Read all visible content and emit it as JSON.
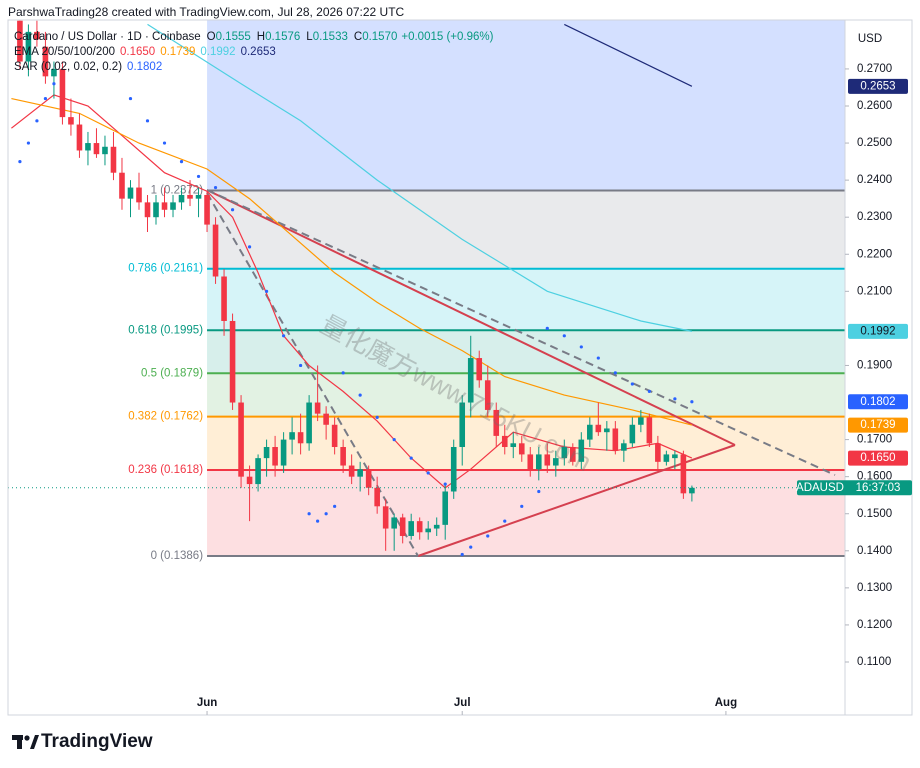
{
  "header": "ParshwaTrading28 created with TradingView.com, Jul 28, 2026 07:22 UTC",
  "logo": "TradingView",
  "chart_data": {
    "type": "candlestick",
    "currency": "USD",
    "symbol": "ADAUSD",
    "countdown": "16:37:03",
    "watermark": "量化魔方www.715KU.com",
    "up_color": "#089981",
    "down_color": "#f23645",
    "xlim": [
      -23.4,
      75
    ],
    "xticks": [
      {
        "value": 0,
        "label": "Jun"
      },
      {
        "value": 30,
        "label": "Jul"
      },
      {
        "value": 61,
        "label": "Aug"
      }
    ],
    "ylim": [
      0.0957,
      0.2832
    ],
    "yticks": [
      {
        "value": 0.11,
        "label": "0.1100"
      },
      {
        "value": 0.12,
        "label": "0.1200"
      },
      {
        "value": 0.13,
        "label": "0.1300"
      },
      {
        "value": 0.14,
        "label": "0.1400"
      },
      {
        "value": 0.15,
        "label": "0.1500"
      },
      {
        "value": 0.16,
        "label": "0.1600"
      },
      {
        "value": 0.17,
        "label": "0.1700"
      },
      {
        "value": 0.19,
        "label": "0.1900"
      },
      {
        "value": 0.21,
        "label": "0.2100"
      },
      {
        "value": 0.22,
        "label": "0.2200"
      },
      {
        "value": 0.23,
        "label": "0.2300"
      },
      {
        "value": 0.24,
        "label": "0.2400"
      },
      {
        "value": 0.25,
        "label": "0.2500"
      },
      {
        "value": 0.26,
        "label": "0.2600"
      },
      {
        "value": 0.27,
        "label": "0.2700"
      }
    ],
    "candles": {
      "x": [
        -22,
        -21,
        -20,
        -19,
        -18,
        -17,
        -16,
        -15,
        -14,
        -13,
        -12,
        -11,
        -10,
        -9,
        -8,
        -7,
        -6,
        -5,
        -4,
        -3,
        -2,
        -1,
        0,
        1,
        2,
        3,
        4,
        5,
        6,
        7,
        8,
        9,
        10,
        11,
        12,
        13,
        14,
        15,
        16,
        17,
        18,
        19,
        20,
        21,
        22,
        23,
        24,
        25,
        26,
        27,
        28,
        29,
        30,
        31,
        32,
        33,
        34,
        35,
        36,
        37,
        38,
        39,
        40,
        41,
        42,
        43,
        44,
        45,
        46,
        47,
        48,
        49,
        50,
        51,
        52,
        53,
        54,
        55,
        56,
        57
      ],
      "open": [
        0.283,
        0.272,
        0.28,
        0.276,
        0.268,
        0.27,
        0.257,
        0.255,
        0.248,
        0.25,
        0.247,
        0.249,
        0.242,
        0.235,
        0.238,
        0.234,
        0.23,
        0.234,
        0.232,
        0.234,
        0.236,
        0.235,
        0.236,
        0.228,
        0.214,
        0.202,
        0.18,
        0.16,
        0.158,
        0.165,
        0.168,
        0.163,
        0.17,
        0.172,
        0.169,
        0.18,
        0.177,
        0.174,
        0.168,
        0.163,
        0.16,
        0.162,
        0.157,
        0.152,
        0.146,
        0.149,
        0.144,
        0.148,
        0.145,
        0.146,
        0.147,
        0.156,
        0.168,
        0.18,
        0.192,
        0.186,
        0.178,
        0.171,
        0.168,
        0.169,
        0.166,
        0.162,
        0.166,
        0.163,
        0.165,
        0.168,
        0.164,
        0.17,
        0.174,
        0.172,
        0.173,
        0.167,
        0.169,
        0.174,
        0.176,
        0.169,
        0.164,
        0.165,
        0.166,
        0.1555
      ],
      "high": [
        0.283,
        0.282,
        0.283,
        0.28,
        0.272,
        0.272,
        0.262,
        0.258,
        0.253,
        0.254,
        0.252,
        0.253,
        0.246,
        0.24,
        0.242,
        0.236,
        0.236,
        0.238,
        0.236,
        0.238,
        0.24,
        0.238,
        0.237,
        0.23,
        0.216,
        0.204,
        0.182,
        0.163,
        0.166,
        0.17,
        0.171,
        0.172,
        0.176,
        0.177,
        0.182,
        0.19,
        0.179,
        0.176,
        0.17,
        0.166,
        0.164,
        0.163,
        0.16,
        0.154,
        0.15,
        0.15,
        0.15,
        0.149,
        0.148,
        0.149,
        0.158,
        0.17,
        0.182,
        0.198,
        0.194,
        0.19,
        0.18,
        0.174,
        0.172,
        0.171,
        0.168,
        0.168,
        0.169,
        0.167,
        0.17,
        0.169,
        0.172,
        0.176,
        0.18,
        0.175,
        0.175,
        0.17,
        0.176,
        0.178,
        0.177,
        0.171,
        0.167,
        0.167,
        0.167,
        0.1576
      ],
      "low": [
        0.27,
        0.268,
        0.276,
        0.266,
        0.262,
        0.255,
        0.252,
        0.246,
        0.244,
        0.246,
        0.244,
        0.24,
        0.232,
        0.23,
        0.232,
        0.226,
        0.228,
        0.23,
        0.23,
        0.232,
        0.233,
        0.23,
        0.226,
        0.212,
        0.198,
        0.178,
        0.157,
        0.148,
        0.156,
        0.16,
        0.16,
        0.161,
        0.166,
        0.166,
        0.167,
        0.175,
        0.17,
        0.166,
        0.161,
        0.158,
        0.156,
        0.155,
        0.15,
        0.14,
        0.14,
        0.142,
        0.143,
        0.143,
        0.143,
        0.144,
        0.143,
        0.154,
        0.163,
        0.176,
        0.184,
        0.176,
        0.168,
        0.166,
        0.165,
        0.164,
        0.16,
        0.159,
        0.161,
        0.16,
        0.163,
        0.163,
        0.162,
        0.168,
        0.171,
        0.167,
        0.166,
        0.164,
        0.168,
        0.172,
        0.168,
        0.162,
        0.163,
        0.162,
        0.154,
        0.1533
      ],
      "close": [
        0.272,
        0.28,
        0.278,
        0.268,
        0.27,
        0.257,
        0.255,
        0.248,
        0.25,
        0.247,
        0.249,
        0.242,
        0.235,
        0.238,
        0.234,
        0.23,
        0.234,
        0.232,
        0.234,
        0.236,
        0.235,
        0.236,
        0.228,
        0.214,
        0.202,
        0.18,
        0.16,
        0.158,
        0.165,
        0.168,
        0.163,
        0.17,
        0.172,
        0.169,
        0.18,
        0.177,
        0.174,
        0.168,
        0.163,
        0.16,
        0.162,
        0.157,
        0.152,
        0.146,
        0.149,
        0.144,
        0.148,
        0.145,
        0.146,
        0.147,
        0.156,
        0.168,
        0.18,
        0.192,
        0.186,
        0.178,
        0.171,
        0.168,
        0.169,
        0.166,
        0.162,
        0.166,
        0.163,
        0.165,
        0.168,
        0.164,
        0.17,
        0.174,
        0.172,
        0.173,
        0.167,
        0.169,
        0.174,
        0.176,
        0.169,
        0.164,
        0.166,
        0.166,
        0.1555,
        0.157
      ]
    },
    "ema": {
      "lines": [
        {
          "color": "#f23645",
          "x": [
            -23,
            -18,
            -14,
            -10,
            -5,
            0,
            3,
            6,
            9,
            12,
            16,
            20,
            24,
            28,
            31,
            36,
            42,
            48,
            53,
            57
          ],
          "values": [
            0.254,
            0.263,
            0.26,
            0.252,
            0.242,
            0.237,
            0.23,
            0.215,
            0.198,
            0.19,
            0.183,
            0.175,
            0.165,
            0.157,
            0.162,
            0.172,
            0.168,
            0.167,
            0.169,
            0.165
          ]
        },
        {
          "color": "#ff9800",
          "x": [
            -23,
            -15,
            -8,
            0,
            5,
            10,
            15,
            20,
            25,
            30,
            35,
            42,
            50,
            57
          ],
          "values": [
            0.262,
            0.258,
            0.25,
            0.243,
            0.235,
            0.225,
            0.215,
            0.207,
            0.2,
            0.194,
            0.187,
            0.182,
            0.178,
            0.1739
          ]
        },
        {
          "color": "#4dd0e1",
          "x": [
            -7,
            4,
            11,
            20,
            30,
            40,
            51,
            57
          ],
          "values": [
            0.282,
            0.266,
            0.256,
            0.24,
            0.224,
            0.21,
            0.202,
            0.1992
          ]
        },
        {
          "color": "#1e2a78",
          "x": [
            42,
            57
          ],
          "values": [
            0.282,
            0.2653
          ]
        }
      ]
    },
    "sar": {
      "color": "#2962ff",
      "x": [
        -22,
        -21,
        -20,
        -19,
        -18,
        -9,
        -7,
        -5,
        -3,
        -1,
        1,
        3,
        5,
        7,
        9,
        11,
        12,
        13,
        14,
        15,
        16,
        18,
        20,
        22,
        24,
        26,
        28,
        30,
        31,
        33,
        35,
        37,
        39,
        40,
        42,
        44,
        46,
        48,
        50,
        52,
        55,
        57
      ],
      "values": [
        0.245,
        0.25,
        0.256,
        0.262,
        0.266,
        0.262,
        0.256,
        0.25,
        0.245,
        0.241,
        0.238,
        0.232,
        0.222,
        0.21,
        0.198,
        0.19,
        0.15,
        0.148,
        0.15,
        0.152,
        0.188,
        0.182,
        0.176,
        0.17,
        0.165,
        0.161,
        0.158,
        0.139,
        0.141,
        0.144,
        0.148,
        0.152,
        0.156,
        0.2,
        0.198,
        0.195,
        0.192,
        0.188,
        0.185,
        0.183,
        0.181,
        0.1802
      ]
    },
    "fib": {
      "top_fill": "#2962ff",
      "levels": [
        {
          "label": "1 (0.2372)",
          "value": 0.2372,
          "color": "#787b86"
        },
        {
          "label": "0.786 (0.2161)",
          "value": 0.2161,
          "color": "#00bcd4"
        },
        {
          "label": "0.618 (0.1995)",
          "value": 0.1995,
          "color": "#089981"
        },
        {
          "label": "0.5 (0.1879)",
          "value": 0.1879,
          "color": "#4caf50"
        },
        {
          "label": "0.382 (0.1762)",
          "value": 0.1762,
          "color": "#ff9800"
        },
        {
          "label": "0.236 (0.1618)",
          "value": 0.1618,
          "color": "#f23645"
        },
        {
          "label": "0 (0.1386)",
          "value": 0.1386,
          "color": "#787b86"
        }
      ]
    },
    "legend": {
      "title": "Cardano / US Dollar · 1D · Coinbase",
      "ohlc": [
        {
          "key": "O",
          "value": "0.1555"
        },
        {
          "key": "H",
          "value": "0.1576"
        },
        {
          "key": "L",
          "value": "0.1533"
        },
        {
          "key": "C",
          "value": "0.1570"
        }
      ],
      "change": "+0.0015 (+0.96%)",
      "ema_label": "EMA 20/50/100/200",
      "ema_values": [
        "0.1650",
        "0.1739",
        "0.1992",
        "0.2653"
      ],
      "sar_label": "SAR (0.02, 0.02, 0.2)",
      "sar_value": "0.1802"
    }
  }
}
